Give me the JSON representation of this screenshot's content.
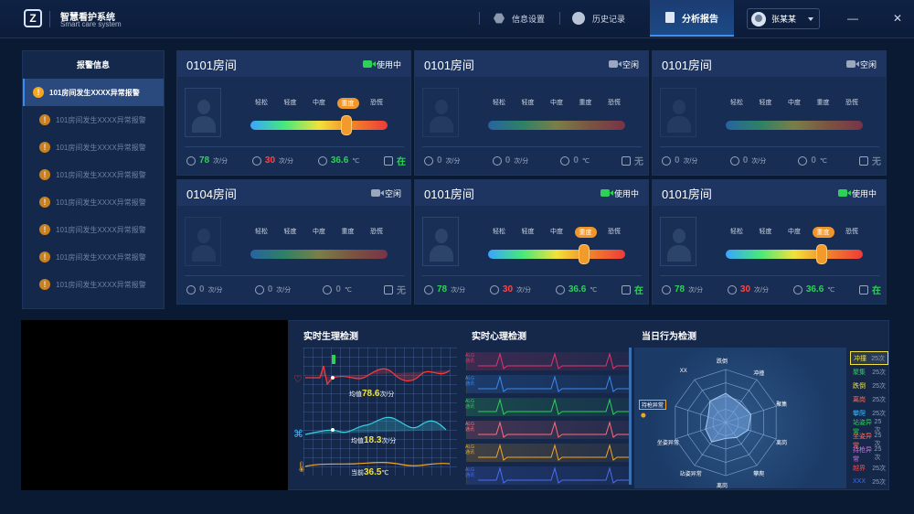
{
  "app": {
    "title": "智慧看护系统",
    "subtitle": "Smart care system",
    "logo_letter": "Z"
  },
  "nav": [
    {
      "label": "信息设置",
      "icon": "settings-icon"
    },
    {
      "label": "历史记录",
      "icon": "history-icon"
    },
    {
      "label": "分析报告",
      "icon": "report-icon",
      "active": true
    }
  ],
  "user": {
    "name": "张某某"
  },
  "window": {
    "minimize": "—",
    "close": "✕"
  },
  "alarms": {
    "title": "报警信息",
    "items": [
      "101房间发生XXXX异常报警",
      "101房间发生XXXX异常报警",
      "101房间发生XXXX异常报警",
      "101房间发生XXXX异常报警",
      "101房间发生XXXX异常报警",
      "101房间发生XXXX异常报警",
      "101房间发生XXXX异常报警",
      "101房间发生XXXX异常报警"
    ]
  },
  "level_labels": [
    "轻松",
    "轻度",
    "中度",
    "重度",
    "恐慌"
  ],
  "rooms": [
    {
      "name": "0101房间",
      "status": "使用中",
      "active": true,
      "level_index": 3,
      "level_fraction": 0.7,
      "hr": "78",
      "hr_unit": "次/分",
      "rr": "30",
      "rr_unit": "次/分",
      "temp": "36.6",
      "temp_unit": "℃",
      "bed": "在"
    },
    {
      "name": "0101房间",
      "status": "空闲",
      "active": false,
      "level_index": -1,
      "level_fraction": 0,
      "hr": "0",
      "hr_unit": "次/分",
      "rr": "0",
      "rr_unit": "次/分",
      "temp": "0",
      "temp_unit": "℃",
      "bed": "无"
    },
    {
      "name": "0101房间",
      "status": "空闲",
      "active": false,
      "level_index": -1,
      "level_fraction": 0,
      "hr": "0",
      "hr_unit": "次/分",
      "rr": "0",
      "rr_unit": "次/分",
      "temp": "0",
      "temp_unit": "℃",
      "bed": "无"
    },
    {
      "name": "0104房间",
      "status": "空闲",
      "active": false,
      "level_index": -1,
      "level_fraction": 0,
      "hr": "0",
      "hr_unit": "次/分",
      "rr": "0",
      "rr_unit": "次/分",
      "temp": "0",
      "temp_unit": "℃",
      "bed": "无"
    },
    {
      "name": "0101房间",
      "status": "使用中",
      "active": true,
      "level_index": 3,
      "level_fraction": 0.7,
      "hr": "78",
      "hr_unit": "次/分",
      "rr": "30",
      "rr_unit": "次/分",
      "temp": "36.6",
      "temp_unit": "℃",
      "bed": "在"
    },
    {
      "name": "0101房间",
      "status": "使用中",
      "active": true,
      "level_index": 3,
      "level_fraction": 0.7,
      "hr": "78",
      "hr_unit": "次/分",
      "rr": "30",
      "rr_unit": "次/分",
      "temp": "36.6",
      "temp_unit": "℃",
      "bed": "在"
    }
  ],
  "physio": {
    "title": "实时生理检测",
    "hr": {
      "label": "均值",
      "value": "78.6",
      "unit": "次/分"
    },
    "rr": {
      "label": "均值",
      "value": "18.3",
      "unit": "次/分"
    },
    "temp": {
      "label": "当前",
      "value": "36.5",
      "unit": "℃"
    }
  },
  "heart": {
    "title": "实时心理检测",
    "tag_top": "ALG",
    "tag_bottom": "通讯",
    "row_colors": [
      "#e0366b",
      "#3a8af0",
      "#2ed158",
      "#ff6b7a",
      "#f2a626",
      "#4a6ef0"
    ]
  },
  "behavior": {
    "title": "当日行为检测",
    "axes": [
      "跌倒",
      "冲撞",
      "聚集",
      "离岗",
      "攀爬",
      "离岗",
      "站姿异常",
      "坐姿异常",
      "持枪异常",
      "XX"
    ],
    "values": [
      0.55,
      0.45,
      0.5,
      0.45,
      0.35,
      0.3,
      0.45,
      0.4,
      0.35,
      0.5
    ],
    "highlight_axis": "持枪异常",
    "list": [
      {
        "name": "冲撞",
        "count": "25次",
        "color": "#f2e23c",
        "selected": true
      },
      {
        "name": "聚集",
        "count": "25次",
        "color": "#2ed158"
      },
      {
        "name": "跌倒",
        "count": "25次",
        "color": "#f2e23c"
      },
      {
        "name": "离岗",
        "count": "25次",
        "color": "#ff6b5a"
      },
      {
        "name": "攀爬",
        "count": "25次",
        "color": "#3ab8ff"
      },
      {
        "name": "站姿异常",
        "count": "25次",
        "color": "#2ed158"
      },
      {
        "name": "坐姿异常",
        "count": "25次",
        "color": "#ff6b5a"
      },
      {
        "name": "持枪异常",
        "count": "25次",
        "color": "#c47ad8"
      },
      {
        "name": "越界",
        "count": "25次",
        "color": "#ff4444"
      },
      {
        "name": "XXX",
        "count": "25次",
        "color": "#3a6ef0"
      }
    ]
  }
}
